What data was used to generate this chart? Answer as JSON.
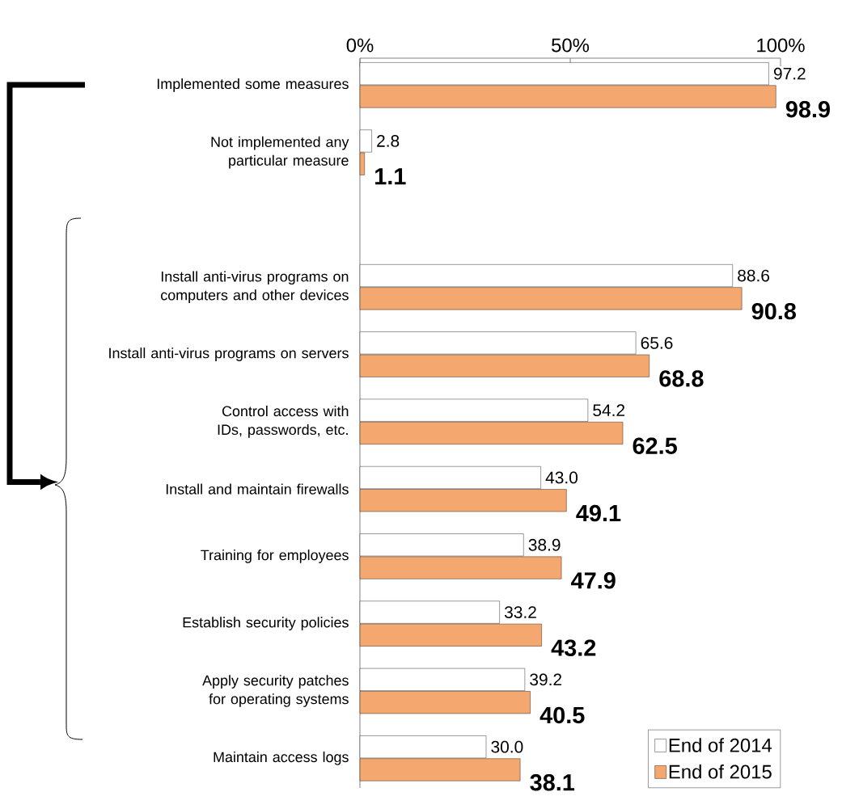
{
  "chart_data": {
    "type": "bar",
    "orientation": "horizontal",
    "categories": [
      "Implemented some measures",
      "Not implemented any particular measure",
      null,
      "Install anti-virus programs on computers and other devices",
      "Install anti-virus programs on servers",
      "Control access with IDs, passwords, etc.",
      "Install and maintain firewalls",
      "Training for employees",
      "Establish security policies",
      "Apply security patches for operating systems",
      "Maintain access logs"
    ],
    "series": [
      {
        "name": "End of 2014",
        "color": "#ffffff",
        "values": [
          97.2,
          2.8,
          null,
          88.6,
          65.6,
          54.2,
          43.0,
          38.9,
          33.2,
          39.2,
          30.0
        ],
        "value_labels": [
          "97.2",
          "2.8",
          null,
          "88.6",
          "65.6",
          "54.2",
          "43.0",
          "38.9",
          "33.2",
          "39.2",
          "30.0"
        ]
      },
      {
        "name": "End of 2015",
        "color": "#f4a870",
        "values": [
          98.9,
          1.1,
          null,
          90.8,
          68.8,
          62.5,
          49.1,
          47.9,
          43.2,
          40.5,
          38.1
        ],
        "value_labels": [
          "98.9",
          "1.1",
          null,
          "90.8",
          "68.8",
          "62.5",
          "49.1",
          "47.9",
          "43.2",
          "40.5",
          "38.1"
        ]
      }
    ],
    "xlim": [
      0,
      100
    ],
    "xticks": [
      {
        "value": 0,
        "label": "0%"
      },
      {
        "value": 50,
        "label": "50%"
      },
      {
        "value": 100,
        "label": "100%"
      }
    ],
    "legend": "bottom right",
    "grid": false
  }
}
